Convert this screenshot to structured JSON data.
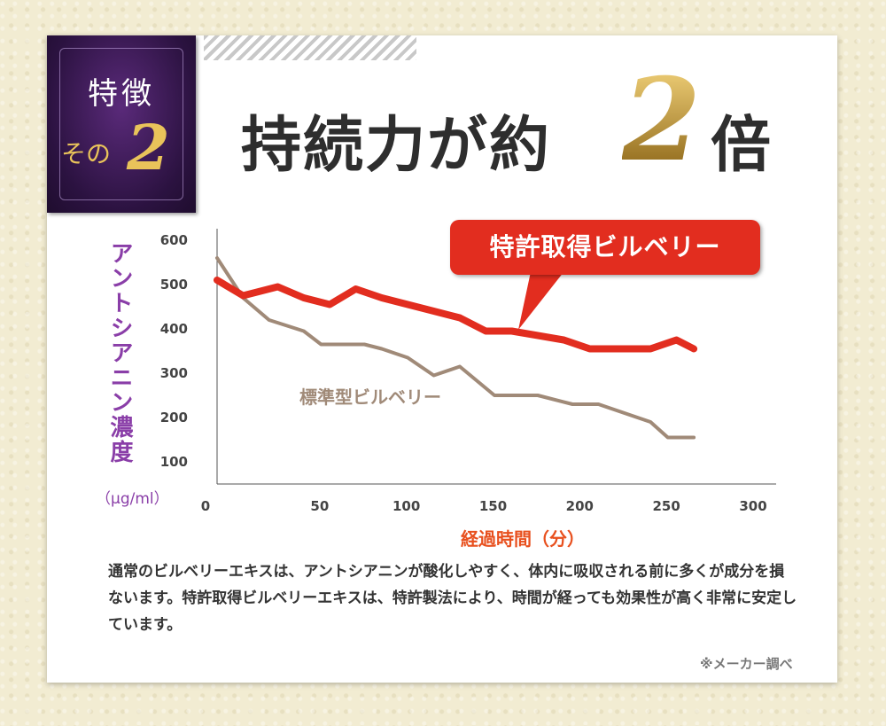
{
  "badge": {
    "line1": "特徴",
    "line2": "その",
    "number": "2"
  },
  "headline": {
    "prefix": "持続力が約",
    "number": "2",
    "suffix": "倍"
  },
  "callout_label": "特許取得ビルベリー",
  "standard_label": "標準型ビルベリー",
  "y_axis_label": "アントシアニン濃度",
  "y_axis_unit": "（μg/ml）",
  "x_axis_label": "経過時間（分）",
  "description": "通常のビルベリーエキスは、アントシアニンが酸化しやすく、体内に吸収される前に多くが成分を損ないます。特許取得ビルベリーエキスは、特許製法により、時間が経っても効果性が高く非常に安定しています。",
  "note": "※メーカー調べ",
  "colors": {
    "patented": "#e22d1f",
    "standard": "#a08a78",
    "ylabel": "#8a3ea8",
    "xlabel": "#e8501e"
  },
  "chart_data": {
    "type": "line",
    "xlabel": "経過時間（分）",
    "ylabel": "アントシアニン濃度",
    "x_ticks": [
      "0",
      "50",
      "100",
      "150",
      "200",
      "250",
      "300"
    ],
    "y_ticks": [
      "600",
      "500",
      "400",
      "300",
      "200",
      "100"
    ],
    "xlim": [
      0,
      300
    ],
    "ylim": [
      50,
      600
    ],
    "grid": false,
    "series": [
      {
        "name": "特許取得ビルベリー",
        "x": [
          0,
          15,
          35,
          50,
          65,
          80,
          95,
          125,
          140,
          155,
          170,
          200,
          215,
          230,
          250,
          265,
          275
        ],
        "y": [
          510,
          475,
          495,
          470,
          455,
          490,
          470,
          440,
          425,
          395,
          395,
          375,
          355,
          355,
          355,
          375,
          355
        ]
      },
      {
        "name": "標準型ビルベリー",
        "x": [
          0,
          15,
          30,
          50,
          60,
          85,
          95,
          110,
          125,
          140,
          160,
          185,
          205,
          220,
          235,
          250,
          260,
          275
        ],
        "y": [
          560,
          470,
          420,
          395,
          365,
          365,
          355,
          335,
          295,
          315,
          250,
          250,
          230,
          230,
          210,
          190,
          155,
          155
        ]
      }
    ]
  }
}
